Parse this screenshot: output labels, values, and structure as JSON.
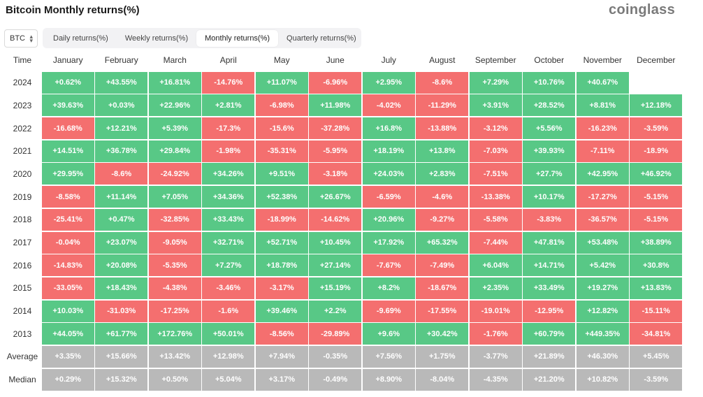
{
  "title": "Bitcoin Monthly returns(%)",
  "logo": "coinglass",
  "coin_select": {
    "value": "BTC"
  },
  "tabs": [
    {
      "label": "Daily returns(%)",
      "active": false
    },
    {
      "label": "Weekly returns(%)",
      "active": false
    },
    {
      "label": "Monthly returns(%)",
      "active": true
    },
    {
      "label": "Quarterly returns(%)",
      "active": false
    }
  ],
  "colors": {
    "positive": "#58c886",
    "negative": "#f46f6f",
    "stat": "#b9b9b9"
  },
  "table": {
    "corner_label": "Time",
    "months": [
      "January",
      "February",
      "March",
      "April",
      "May",
      "June",
      "July",
      "August",
      "September",
      "October",
      "November",
      "December"
    ],
    "rows": [
      {
        "label": "2024",
        "type": "year",
        "cells": [
          "+0.62%",
          "+43.55%",
          "+16.81%",
          "-14.76%",
          "+11.07%",
          "-6.96%",
          "+2.95%",
          "-8.6%",
          "+7.29%",
          "+10.76%",
          "+40.67%",
          ""
        ]
      },
      {
        "label": "2023",
        "type": "year",
        "cells": [
          "+39.63%",
          "+0.03%",
          "+22.96%",
          "+2.81%",
          "-6.98%",
          "+11.98%",
          "-4.02%",
          "-11.29%",
          "+3.91%",
          "+28.52%",
          "+8.81%",
          "+12.18%"
        ]
      },
      {
        "label": "2022",
        "type": "year",
        "cells": [
          "-16.68%",
          "+12.21%",
          "+5.39%",
          "-17.3%",
          "-15.6%",
          "-37.28%",
          "+16.8%",
          "-13.88%",
          "-3.12%",
          "+5.56%",
          "-16.23%",
          "-3.59%"
        ]
      },
      {
        "label": "2021",
        "type": "year",
        "cells": [
          "+14.51%",
          "+36.78%",
          "+29.84%",
          "-1.98%",
          "-35.31%",
          "-5.95%",
          "+18.19%",
          "+13.8%",
          "-7.03%",
          "+39.93%",
          "-7.11%",
          "-18.9%"
        ]
      },
      {
        "label": "2020",
        "type": "year",
        "cells": [
          "+29.95%",
          "-8.6%",
          "-24.92%",
          "+34.26%",
          "+9.51%",
          "-3.18%",
          "+24.03%",
          "+2.83%",
          "-7.51%",
          "+27.7%",
          "+42.95%",
          "+46.92%"
        ]
      },
      {
        "label": "2019",
        "type": "year",
        "cells": [
          "-8.58%",
          "+11.14%",
          "+7.05%",
          "+34.36%",
          "+52.38%",
          "+26.67%",
          "-6.59%",
          "-4.6%",
          "-13.38%",
          "+10.17%",
          "-17.27%",
          "-5.15%"
        ]
      },
      {
        "label": "2018",
        "type": "year",
        "cells": [
          "-25.41%",
          "+0.47%",
          "-32.85%",
          "+33.43%",
          "-18.99%",
          "-14.62%",
          "+20.96%",
          "-9.27%",
          "-5.58%",
          "-3.83%",
          "-36.57%",
          "-5.15%"
        ]
      },
      {
        "label": "2017",
        "type": "year",
        "cells": [
          "-0.04%",
          "+23.07%",
          "-9.05%",
          "+32.71%",
          "+52.71%",
          "+10.45%",
          "+17.92%",
          "+65.32%",
          "-7.44%",
          "+47.81%",
          "+53.48%",
          "+38.89%"
        ]
      },
      {
        "label": "2016",
        "type": "year",
        "cells": [
          "-14.83%",
          "+20.08%",
          "-5.35%",
          "+7.27%",
          "+18.78%",
          "+27.14%",
          "-7.67%",
          "-7.49%",
          "+6.04%",
          "+14.71%",
          "+5.42%",
          "+30.8%"
        ]
      },
      {
        "label": "2015",
        "type": "year",
        "cells": [
          "-33.05%",
          "+18.43%",
          "-4.38%",
          "-3.46%",
          "-3.17%",
          "+15.19%",
          "+8.2%",
          "-18.67%",
          "+2.35%",
          "+33.49%",
          "+19.27%",
          "+13.83%"
        ]
      },
      {
        "label": "2014",
        "type": "year",
        "cells": [
          "+10.03%",
          "-31.03%",
          "-17.25%",
          "-1.6%",
          "+39.46%",
          "+2.2%",
          "-9.69%",
          "-17.55%",
          "-19.01%",
          "-12.95%",
          "+12.82%",
          "-15.11%"
        ]
      },
      {
        "label": "2013",
        "type": "year",
        "cells": [
          "+44.05%",
          "+61.77%",
          "+172.76%",
          "+50.01%",
          "-8.56%",
          "-29.89%",
          "+9.6%",
          "+30.42%",
          "-1.76%",
          "+60.79%",
          "+449.35%",
          "-34.81%"
        ]
      },
      {
        "label": "Average",
        "type": "stat",
        "cells": [
          "+3.35%",
          "+15.66%",
          "+13.42%",
          "+12.98%",
          "+7.94%",
          "-0.35%",
          "+7.56%",
          "+1.75%",
          "-3.77%",
          "+21.89%",
          "+46.30%",
          "+5.45%"
        ]
      },
      {
        "label": "Median",
        "type": "stat",
        "cells": [
          "+0.29%",
          "+15.32%",
          "+0.50%",
          "+5.04%",
          "+3.17%",
          "-0.49%",
          "+8.90%",
          "-8.04%",
          "-4.35%",
          "+21.20%",
          "+10.82%",
          "-3.59%"
        ]
      }
    ]
  }
}
